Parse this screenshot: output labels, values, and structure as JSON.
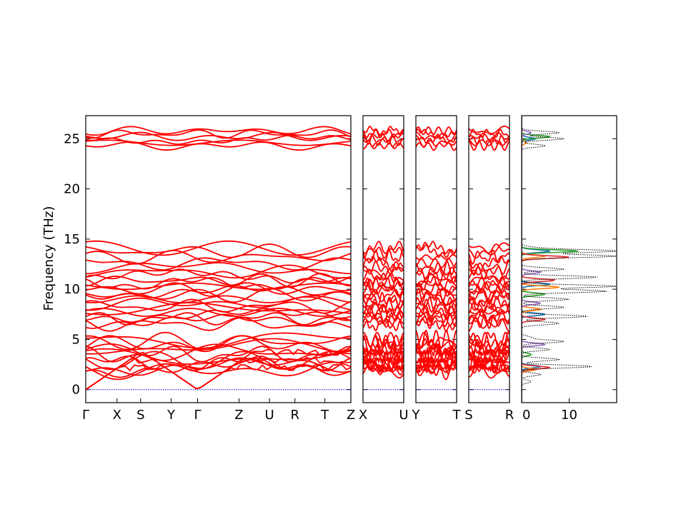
{
  "chart_data": {
    "type": "line",
    "title": "",
    "ylabel": "Frequency (THz)",
    "ylim": [
      -1.3,
      27.3
    ],
    "yticks": [
      0,
      5,
      10,
      15,
      20,
      25
    ],
    "band_color": "#ff0000",
    "zero_line_color": "#0000cc",
    "band_panels": [
      {
        "labels": [
          "Γ",
          "X",
          "S",
          "Y",
          "Γ",
          "Z",
          "U",
          "R",
          "T",
          "Z"
        ],
        "label_positions": [
          0,
          0.118,
          0.207,
          0.322,
          0.422,
          0.578,
          0.693,
          0.789,
          0.902,
          1.0
        ],
        "gamma_points": [
          0,
          0.422
        ]
      },
      {
        "labels": [
          "X",
          "U"
        ],
        "label_positions": [
          0,
          1
        ],
        "gamma_points": []
      },
      {
        "labels": [
          "Y",
          "T"
        ],
        "label_positions": [
          0,
          1
        ],
        "gamma_points": []
      },
      {
        "labels": [
          "S",
          "R"
        ],
        "label_positions": [
          0,
          1
        ],
        "gamma_points": []
      }
    ],
    "band_levels_thz": [
      0.0,
      0.0,
      0.0,
      1.9,
      2.1,
      2.3,
      2.6,
      2.9,
      3.2,
      3.5,
      3.8,
      4.2,
      4.5,
      4.8,
      5.0,
      6.5,
      6.8,
      7.1,
      7.4,
      7.7,
      8.0,
      8.3,
      8.6,
      9.0,
      9.4,
      9.7,
      10.0,
      10.3,
      10.6,
      10.9,
      11.3,
      11.7,
      12.1,
      12.6,
      13.2,
      13.8,
      14.1,
      24.3,
      24.6,
      24.9,
      25.2,
      25.5,
      25.8
    ],
    "dos": {
      "xlim": [
        0,
        20
      ],
      "xticks": [
        0,
        10
      ],
      "total_color": "#000000",
      "projection_colors": [
        "#1f77b4",
        "#ff7f0e",
        "#2ca02c",
        "#d62728",
        "#9467bd"
      ],
      "total": [
        {
          "f": 0.8,
          "d": 2
        },
        {
          "f": 1.5,
          "d": 4
        },
        {
          "f": 2.3,
          "d": 15
        },
        {
          "f": 3.0,
          "d": 8
        },
        {
          "f": 4.0,
          "d": 6
        },
        {
          "f": 4.8,
          "d": 9
        },
        {
          "f": 5.2,
          "d": 2
        },
        {
          "f": 6.6,
          "d": 8
        },
        {
          "f": 7.3,
          "d": 14
        },
        {
          "f": 8.2,
          "d": 9
        },
        {
          "f": 9.0,
          "d": 10
        },
        {
          "f": 9.8,
          "d": 18
        },
        {
          "f": 10.3,
          "d": 20
        },
        {
          "f": 11.2,
          "d": 16
        },
        {
          "f": 12.0,
          "d": 9
        },
        {
          "f": 13.3,
          "d": 20
        },
        {
          "f": 13.8,
          "d": 20
        },
        {
          "f": 14.1,
          "d": 3
        },
        {
          "f": 24.3,
          "d": 5
        },
        {
          "f": 25.0,
          "d": 9
        },
        {
          "f": 25.6,
          "d": 8
        }
      ],
      "projections": [
        [
          {
            "f": 2.3,
            "d": 4
          },
          {
            "f": 7.5,
            "d": 5
          },
          {
            "f": 10.5,
            "d": 6
          },
          {
            "f": 13.8,
            "d": 6
          },
          {
            "f": 25.0,
            "d": 3
          }
        ],
        [
          {
            "f": 2.0,
            "d": 3
          },
          {
            "f": 8.0,
            "d": 4
          },
          {
            "f": 10.2,
            "d": 8
          },
          {
            "f": 13.3,
            "d": 5
          },
          {
            "f": 24.6,
            "d": 1
          }
        ],
        [
          {
            "f": 3.5,
            "d": 2
          },
          {
            "f": 9.5,
            "d": 5
          },
          {
            "f": 13.8,
            "d": 12
          },
          {
            "f": 25.2,
            "d": 6
          }
        ],
        [
          {
            "f": 2.2,
            "d": 6
          },
          {
            "f": 7.0,
            "d": 5
          },
          {
            "f": 10.9,
            "d": 7
          },
          {
            "f": 13.2,
            "d": 10
          }
        ],
        [
          {
            "f": 4.5,
            "d": 5
          },
          {
            "f": 8.6,
            "d": 4
          },
          {
            "f": 11.7,
            "d": 4
          },
          {
            "f": 25.6,
            "d": 2
          }
        ]
      ]
    }
  }
}
